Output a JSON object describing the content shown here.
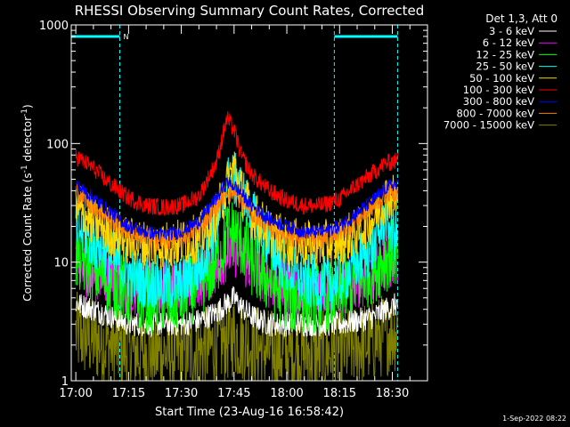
{
  "chart_data": {
    "type": "line",
    "title": "RHESSI Observing Summary Count Rates, Corrected",
    "xlabel": "Start Time (23-Aug-16 16:58:42)",
    "ylabel": "Corrected Count Rate (s",
    "ylabel_sup1": "-1",
    "ylabel_mid": " detector",
    "ylabel_sup2": "-1",
    "ylabel_end": ")",
    "x_ticks": [
      "17:00",
      "17:15",
      "17:30",
      "17:45",
      "18:00",
      "18:15",
      "18:30"
    ],
    "x_tick_minutes": [
      0,
      15,
      30,
      45,
      60,
      75,
      90
    ],
    "x_range_minutes": [
      -1.3,
      100
    ],
    "y_scale": "log",
    "y_range": [
      1,
      1000
    ],
    "y_ticks": [
      "1",
      "10",
      "100",
      "1000"
    ],
    "y_tick_values": [
      1,
      10,
      100,
      1000
    ],
    "legend_title": "Det 1,3, Att 0",
    "legend_position": "top-right-outside",
    "night_marker_label": "N",
    "night_intervals_minutes": [
      [
        -1.3,
        12.5
      ],
      [
        73.5,
        91.5
      ]
    ],
    "footer": "1-Sep-2022 08:22",
    "series": [
      {
        "name": "3 - 6 keV",
        "color": "#ffffff",
        "x": [
          0,
          5,
          10,
          15,
          20,
          25,
          30,
          35,
          40,
          43,
          45,
          47,
          50,
          55,
          60,
          65,
          70,
          75,
          80,
          85,
          88,
          90,
          91.5
        ],
        "y": [
          4.5,
          4,
          3.5,
          3,
          3,
          3,
          3,
          3.2,
          3.8,
          4.5,
          5,
          4.2,
          3.5,
          3,
          3,
          3,
          3,
          3,
          3.2,
          3.5,
          4,
          4.2,
          4.5
        ]
      },
      {
        "name": "6 - 12 keV",
        "color": "#ff00ff",
        "x": [
          0,
          5,
          10,
          15,
          20,
          25,
          30,
          35,
          40,
          43,
          45,
          47,
          50,
          55,
          60,
          65,
          70,
          75,
          80,
          85,
          88,
          90,
          91.5
        ],
        "y": [
          9,
          8,
          7,
          6,
          6,
          6,
          6,
          7,
          9,
          12,
          13,
          11,
          9,
          7,
          6,
          6,
          6,
          6,
          7,
          8,
          10,
          11,
          10
        ]
      },
      {
        "name": "12 - 25 keV",
        "color": "#00ff00",
        "x": [
          0,
          5,
          10,
          15,
          20,
          25,
          30,
          35,
          40,
          43,
          45,
          47,
          50,
          55,
          60,
          65,
          70,
          75,
          80,
          85,
          88,
          90,
          91.5
        ],
        "y": [
          11,
          9,
          7,
          5.5,
          5,
          5,
          5,
          6.5,
          10,
          17,
          18,
          15,
          10,
          7,
          5,
          5,
          5,
          5.5,
          7,
          9,
          11,
          12,
          11
        ]
      },
      {
        "name": "25 - 50 keV",
        "color": "#00ffff",
        "x": [
          0,
          5,
          10,
          15,
          20,
          25,
          30,
          35,
          40,
          43,
          45,
          47,
          50,
          55,
          60,
          65,
          70,
          75,
          80,
          85,
          88,
          90,
          91.5
        ],
        "y": [
          20,
          15,
          11,
          8,
          7,
          6.5,
          6.5,
          9,
          20,
          46,
          50,
          40,
          25,
          14,
          9,
          7,
          6.5,
          7,
          10,
          14,
          25,
          18,
          17
        ]
      },
      {
        "name": "50 - 100 keV",
        "color": "#ffd700",
        "x": [
          0,
          5,
          10,
          15,
          20,
          25,
          30,
          35,
          40,
          43,
          45,
          47,
          50,
          55,
          60,
          65,
          70,
          75,
          80,
          85,
          88,
          90,
          91.5
        ],
        "y": [
          28,
          22,
          18,
          15,
          14,
          14,
          14.5,
          16,
          24,
          45,
          65,
          40,
          26,
          18,
          15,
          14,
          14,
          15,
          18,
          24,
          35,
          36,
          33
        ]
      },
      {
        "name": "100 - 300 keV",
        "color": "#ff0000",
        "x": [
          0,
          5,
          10,
          15,
          20,
          25,
          30,
          35,
          40,
          43,
          45,
          47,
          50,
          55,
          60,
          65,
          70,
          75,
          80,
          85,
          88,
          90,
          91.5
        ],
        "y": [
          78,
          62,
          45,
          35,
          30,
          29,
          30,
          36,
          70,
          165,
          130,
          80,
          55,
          40,
          33,
          30,
          30,
          34,
          45,
          58,
          68,
          70,
          72
        ]
      },
      {
        "name": "300 - 800 keV",
        "color": "#0000ff",
        "x": [
          0,
          5,
          10,
          15,
          20,
          25,
          30,
          35,
          40,
          43,
          45,
          47,
          50,
          55,
          60,
          65,
          70,
          75,
          80,
          85,
          88,
          90,
          91.5
        ],
        "y": [
          45,
          35,
          26,
          20,
          18,
          17,
          18,
          22,
          35,
          47,
          44,
          38,
          30,
          23,
          20,
          18,
          18,
          20,
          26,
          34,
          42,
          45,
          44
        ]
      },
      {
        "name": "800 - 7000 keV",
        "color": "#ff8000",
        "x": [
          0,
          5,
          10,
          15,
          20,
          25,
          30,
          35,
          40,
          43,
          45,
          47,
          50,
          55,
          60,
          65,
          70,
          75,
          80,
          85,
          88,
          90,
          91.5
        ],
        "y": [
          40,
          30,
          23,
          18,
          16,
          15,
          16,
          20,
          30,
          40,
          38,
          33,
          26,
          20,
          17,
          16,
          16,
          18,
          23,
          30,
          38,
          40,
          38
        ]
      },
      {
        "name": "7000 - 15000 keV",
        "color": "#808000",
        "x": [
          0,
          5,
          10,
          15,
          20,
          25,
          30,
          35,
          40,
          43,
          45,
          47,
          50,
          55,
          60,
          65,
          70,
          75,
          80,
          85,
          88,
          90,
          91.5
        ],
        "y": [
          2.5,
          2.2,
          2,
          1.8,
          1.7,
          1.7,
          1.7,
          1.8,
          2,
          2.2,
          2.4,
          2.2,
          2,
          1.8,
          1.7,
          1.7,
          1.7,
          1.8,
          2,
          2.2,
          2.5,
          2.6,
          2.7
        ]
      }
    ]
  }
}
